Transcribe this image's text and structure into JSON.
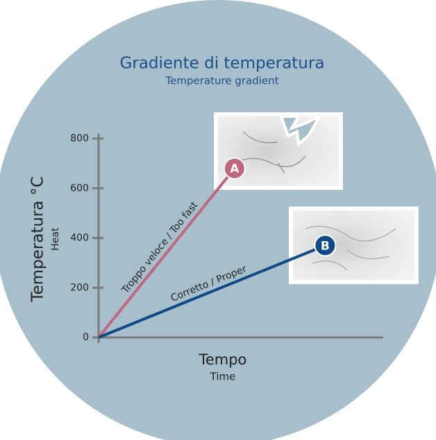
{
  "chart_data": {
    "type": "line",
    "title": "Gradiente di temperatura",
    "subtitle": "Temperature gradient",
    "y_label": "Temperatura °C",
    "y_sublabel": "Heat",
    "x_label": "Tempo",
    "x_sublabel": "Time",
    "xlim": [
      0,
      100
    ],
    "ylim": [
      0,
      800
    ],
    "yticks": [
      0,
      200,
      400,
      600,
      800
    ],
    "series": [
      {
        "name": "Troppo veloce / Too fast",
        "color": "#c0667f",
        "x": [
          0,
          48
        ],
        "values": [
          0,
          680
        ],
        "point_label": "A"
      },
      {
        "name": "Corretto / Proper",
        "color": "#0d4a87",
        "x": [
          0,
          80
        ],
        "values": [
          0,
          370
        ],
        "point_label": "B"
      }
    ]
  }
}
